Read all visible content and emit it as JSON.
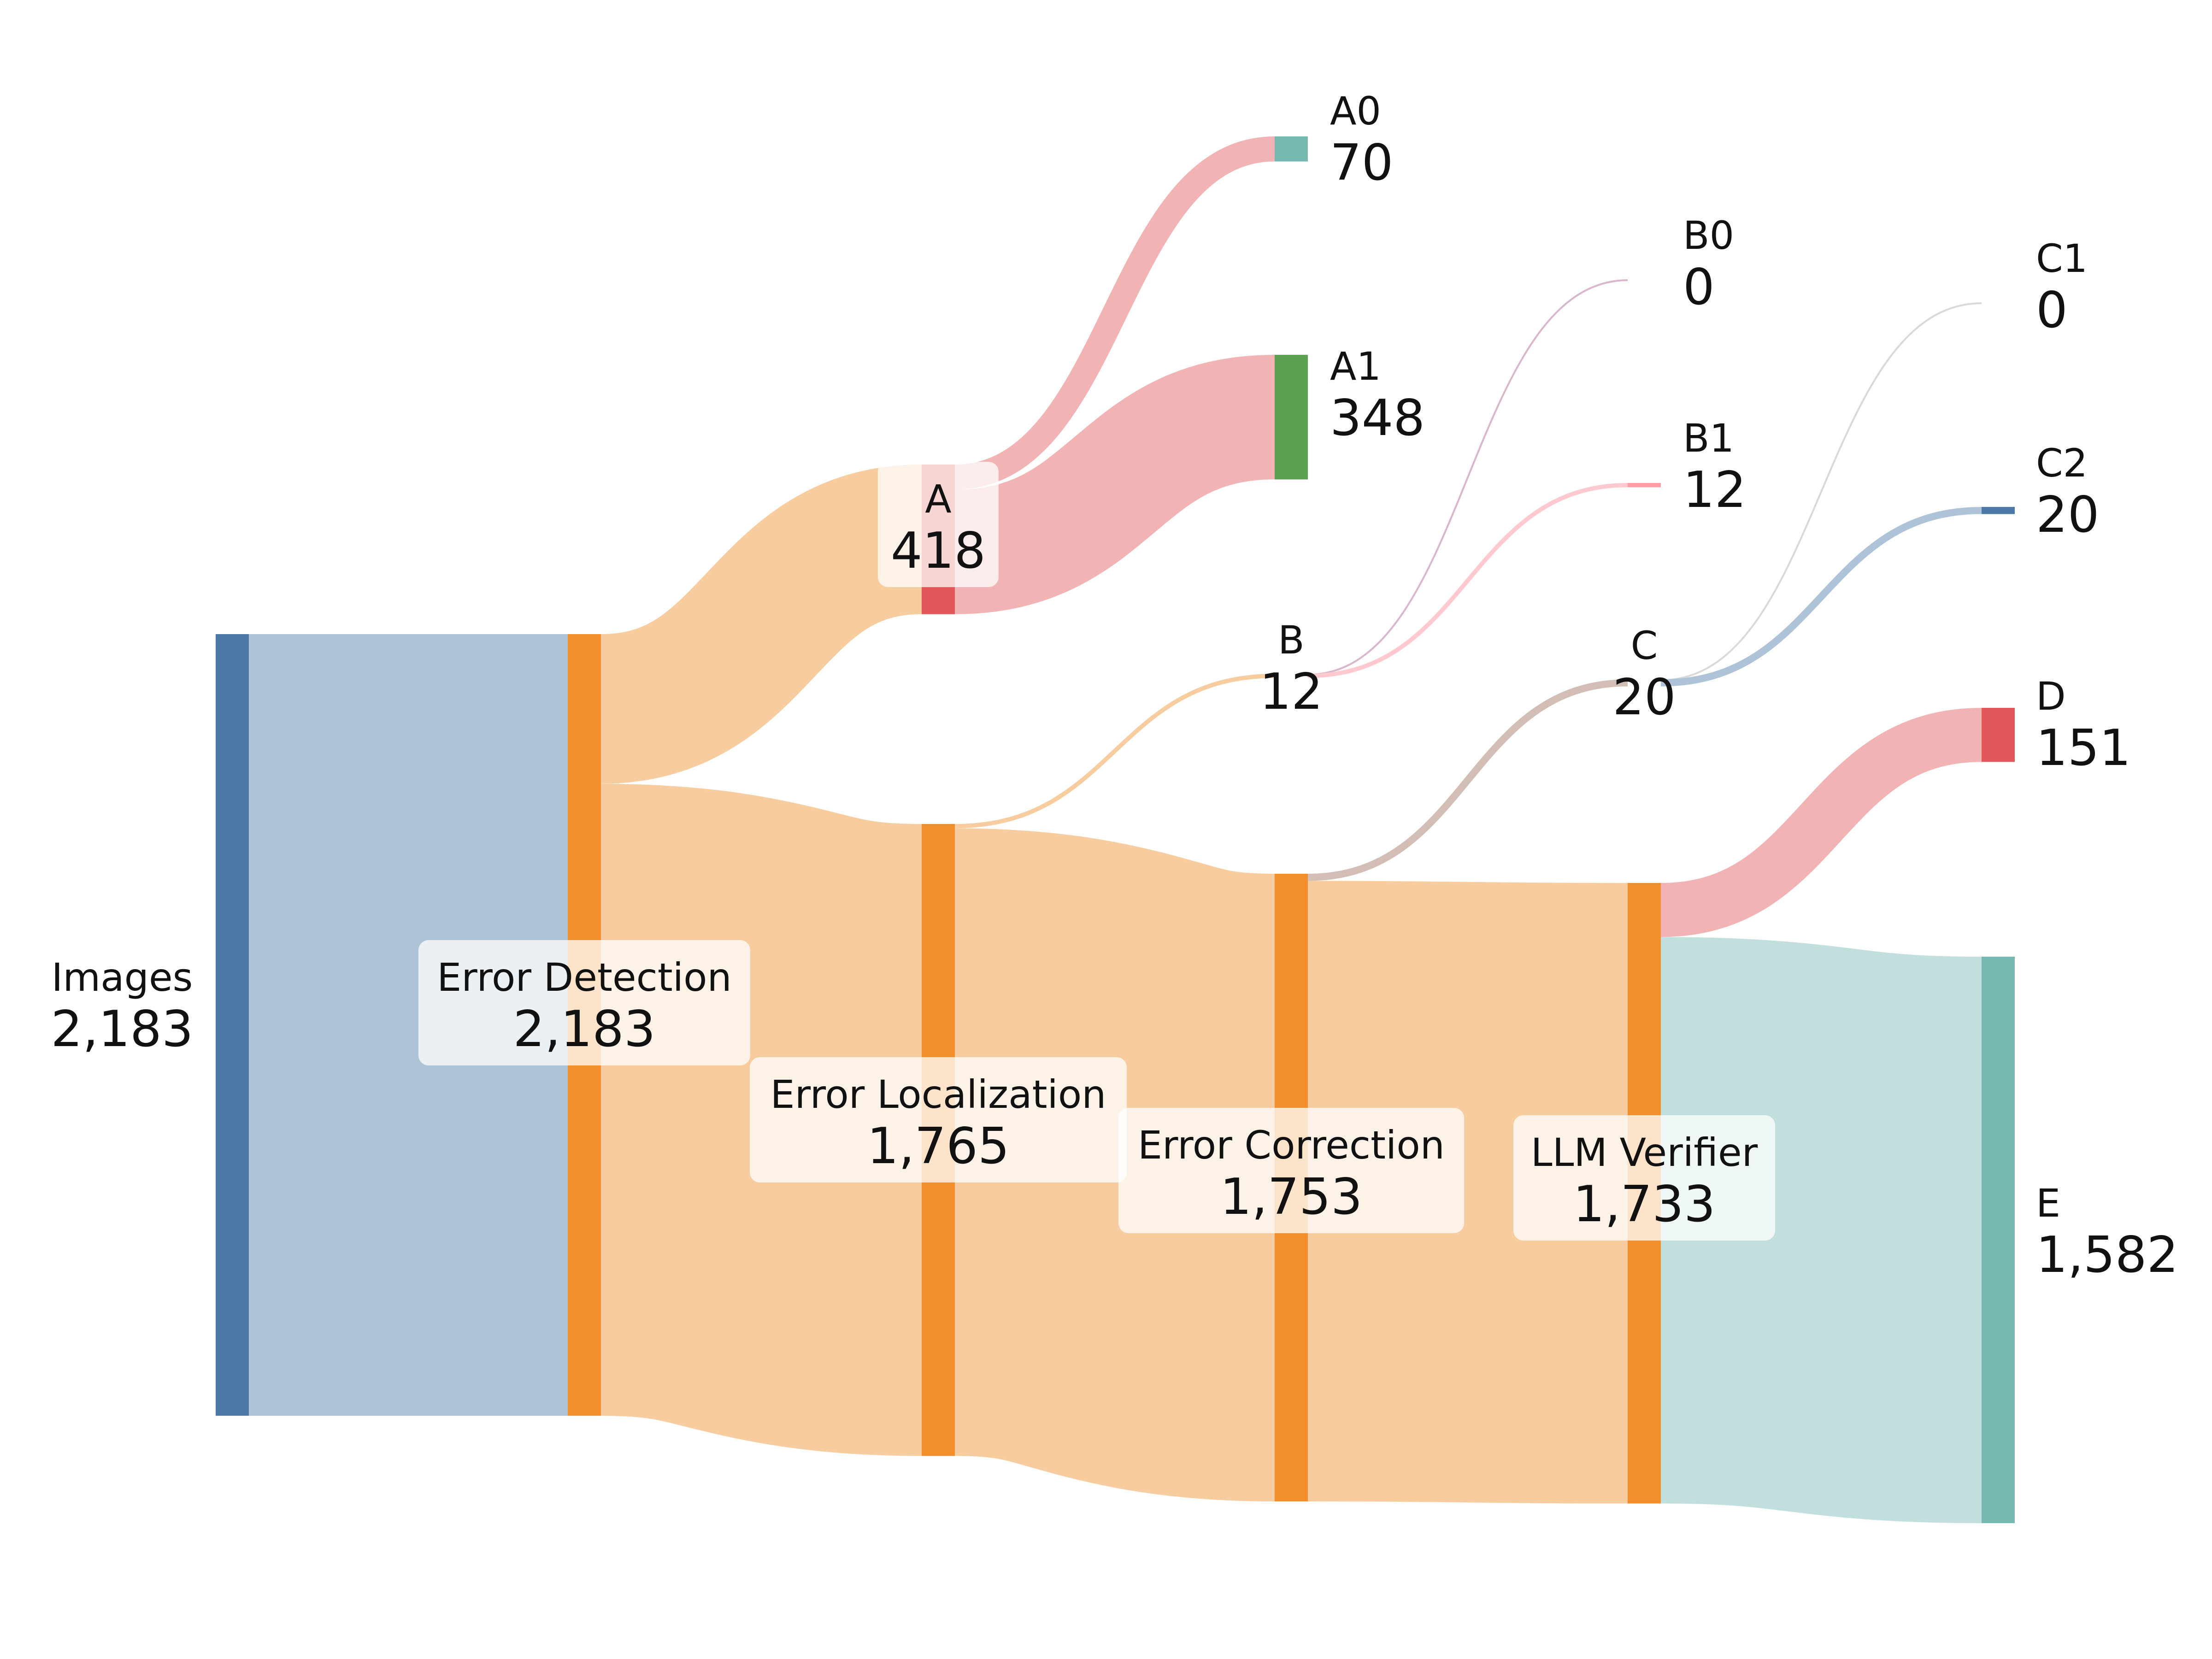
{
  "chart_data": {
    "type": "sankey",
    "nodes": [
      {
        "id": "images",
        "name": "Images",
        "value": "2,183",
        "color": "#4e79a7"
      },
      {
        "id": "detect",
        "name": "Error Detection",
        "value": "2,183",
        "color": "#f28e2b"
      },
      {
        "id": "localize",
        "name": "Error Localization",
        "value": "1,765",
        "color": "#f28e2b"
      },
      {
        "id": "correct",
        "name": "Error Correction",
        "value": "1,753",
        "color": "#f28e2b"
      },
      {
        "id": "verify",
        "name": "LLM Verifier",
        "value": "1,733",
        "color": "#f28e2b"
      },
      {
        "id": "A",
        "name": "A",
        "value": "418",
        "color": "#e15759"
      },
      {
        "id": "B",
        "name": "B",
        "value": "12",
        "color": "#f28e2b"
      },
      {
        "id": "C",
        "name": "C",
        "value": "20",
        "color": "#4e79a7"
      },
      {
        "id": "A0",
        "name": "A0",
        "value": "70",
        "color": "#76b7b2"
      },
      {
        "id": "A1",
        "name": "A1",
        "value": "348",
        "color": "#59a14f"
      },
      {
        "id": "B0",
        "name": "B0",
        "value": "0",
        "color": "#b07aa1"
      },
      {
        "id": "B1",
        "name": "B1",
        "value": "12",
        "color": "#ff9da7"
      },
      {
        "id": "C1",
        "name": "C1",
        "value": "0",
        "color": "#bab0ac"
      },
      {
        "id": "C2",
        "name": "C2",
        "value": "20",
        "color": "#4e79a7"
      },
      {
        "id": "D",
        "name": "D",
        "value": "151",
        "color": "#e15759"
      },
      {
        "id": "E",
        "name": "E",
        "value": "1,582",
        "color": "#76b7b2"
      }
    ],
    "links": [
      {
        "source": "images",
        "target": "detect",
        "value": 2183
      },
      {
        "source": "detect",
        "target": "A",
        "value": 418
      },
      {
        "source": "detect",
        "target": "localize",
        "value": 1765
      },
      {
        "source": "A",
        "target": "A0",
        "value": 70
      },
      {
        "source": "A",
        "target": "A1",
        "value": 348
      },
      {
        "source": "localize",
        "target": "B",
        "value": 12
      },
      {
        "source": "localize",
        "target": "correct",
        "value": 1753
      },
      {
        "source": "B",
        "target": "B0",
        "value": 0
      },
      {
        "source": "B",
        "target": "B1",
        "value": 12
      },
      {
        "source": "correct",
        "target": "C",
        "value": 20
      },
      {
        "source": "correct",
        "target": "verify",
        "value": 1733
      },
      {
        "source": "C",
        "target": "C1",
        "value": 0
      },
      {
        "source": "C",
        "target": "C2",
        "value": 20
      },
      {
        "source": "verify",
        "target": "D",
        "value": 151
      },
      {
        "source": "verify",
        "target": "E",
        "value": 1582
      }
    ]
  }
}
